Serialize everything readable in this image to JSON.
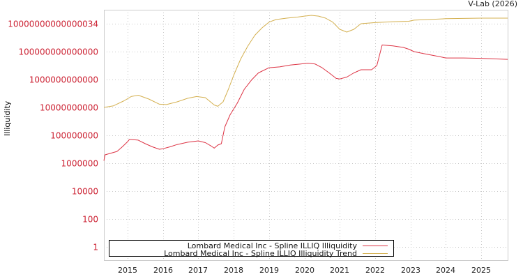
{
  "chart_data": {
    "type": "line",
    "title": "",
    "credit": "V-Lab (2026)",
    "xlabel": "",
    "ylabel": "Illiquidity",
    "yscale": "log",
    "ylim": [
      0.3,
      40000000000000000
    ],
    "y_ticks": [
      "10000000000000034",
      "100000000000000",
      "1000000000000",
      "10000000000",
      "100000000",
      "1000000",
      "10000",
      "100",
      "1"
    ],
    "x_ticks": [
      "2015",
      "2016",
      "2017",
      "2018",
      "2019",
      "2020",
      "2021",
      "2022",
      "2023",
      "2024",
      "2025"
    ],
    "xlim": [
      2014.33,
      2025.75
    ],
    "grid": true,
    "legend_position": "bottom-left inside",
    "colors": {
      "illiquidity": "#dd3344",
      "trend": "#d4b050",
      "ytick": "#cc2233",
      "grid": "#c8c8c8",
      "frame": "#cccccc"
    },
    "series": [
      {
        "name": "Lombard Medical Inc - Spline ILLIQ Illiquidity",
        "color": "#dd3344",
        "x": [
          2014.33,
          2014.36,
          2014.5,
          2014.7,
          2014.85,
          2015.0,
          2015.05,
          2015.1,
          2015.3,
          2015.5,
          2015.7,
          2015.9,
          2016.0,
          2016.2,
          2016.4,
          2016.7,
          2017.0,
          2017.2,
          2017.35,
          2017.45,
          2017.55,
          2017.65,
          2017.75,
          2017.9,
          2018.1,
          2018.3,
          2018.5,
          2018.7,
          2019.0,
          2019.3,
          2019.6,
          2019.9,
          2020.1,
          2020.3,
          2020.5,
          2020.7,
          2020.9,
          2021.0,
          2021.2,
          2021.4,
          2021.6,
          2021.75,
          2021.9,
          2022.05,
          2022.2,
          2022.5,
          2022.8,
          2022.95,
          2023.1,
          2023.4,
          2023.7,
          2024.0,
          2024.5,
          2025.0,
          2025.75
        ],
        "y": [
          1500000.0,
          4000000.0,
          5000000.0,
          7000000.0,
          15000000.0,
          35000000.0,
          50000000.0,
          50000000.0,
          45000000.0,
          25000000.0,
          15000000.0,
          10000000.0,
          11000000.0,
          15000000.0,
          22000000.0,
          32000000.0,
          40000000.0,
          30000000.0,
          18000000.0,
          12000000.0,
          20000000.0,
          25000000.0,
          400000000.0,
          3000000000.0,
          20000000000.0,
          200000000000.0,
          900000000000.0,
          3000000000000.0,
          7000000000000.0,
          8000000000000.0,
          11000000000000.0,
          13000000000000.0,
          15000000000000.0,
          13000000000000.0,
          7000000000000.0,
          3000000000000.0,
          1200000000000.0,
          1100000000000.0,
          1500000000000.0,
          3000000000000.0,
          5000000000000.0,
          5000000000000.0,
          5000000000000.0,
          10000000000000.0,
          300000000000000.0,
          260000000000000.0,
          200000000000000.0,
          150000000000000.0,
          100000000000000.0,
          70000000000000.0,
          50000000000000.0,
          35000000000000.0,
          35000000000000.0,
          33000000000000.0,
          28000000000000.0
        ]
      },
      {
        "name": "Lombard Medical Inc - Spline ILLIQ Illiquidity Trend",
        "color": "#d4b050",
        "x": [
          2014.33,
          2014.6,
          2014.9,
          2015.1,
          2015.3,
          2015.6,
          2015.9,
          2016.1,
          2016.4,
          2016.7,
          2016.95,
          2017.2,
          2017.45,
          2017.55,
          2017.7,
          2017.85,
          2018.0,
          2018.2,
          2018.4,
          2018.6,
          2018.8,
          2019.0,
          2019.2,
          2019.5,
          2019.8,
          2020.0,
          2020.2,
          2020.4,
          2020.6,
          2020.8,
          2021.0,
          2021.2,
          2021.4,
          2021.6,
          2022.0,
          2022.5,
          2022.95,
          2023.1,
          2023.5,
          2024.0,
          2024.5,
          2025.0,
          2025.75
        ],
        "y": [
          10000000000.0,
          13000000000.0,
          30000000000.0,
          60000000000.0,
          75000000000.0,
          40000000000.0,
          17000000000.0,
          16000000000.0,
          25000000000.0,
          45000000000.0,
          60000000000.0,
          50000000000.0,
          15000000000.0,
          12000000000.0,
          25000000000.0,
          200000000000.0,
          2000000000000.0,
          30000000000000.0,
          250000000000000.0,
          1500000000000000.0,
          5000000000000000.0,
          1.3e+16,
          2e+16,
          2.5e+16,
          3e+16,
          3.5e+16,
          4e+16,
          3.5e+16,
          2.5e+16,
          1.3e+16,
          4000000000000000.0,
          2500000000000000.0,
          4000000000000000.0,
          1e+16,
          1.2e+16,
          1.4e+16,
          1.5e+16,
          1.8e+16,
          2e+16,
          2.3e+16,
          2.4e+16,
          2.5e+16,
          2.5e+16
        ]
      }
    ]
  },
  "legend": {
    "items": [
      {
        "label": "Lombard Medical Inc - Spline ILLIQ Illiquidity",
        "color": "#dd3344"
      },
      {
        "label": "Lombard Medical Inc - Spline ILLIQ Illiquidity Trend",
        "color": "#d4b050"
      }
    ]
  }
}
